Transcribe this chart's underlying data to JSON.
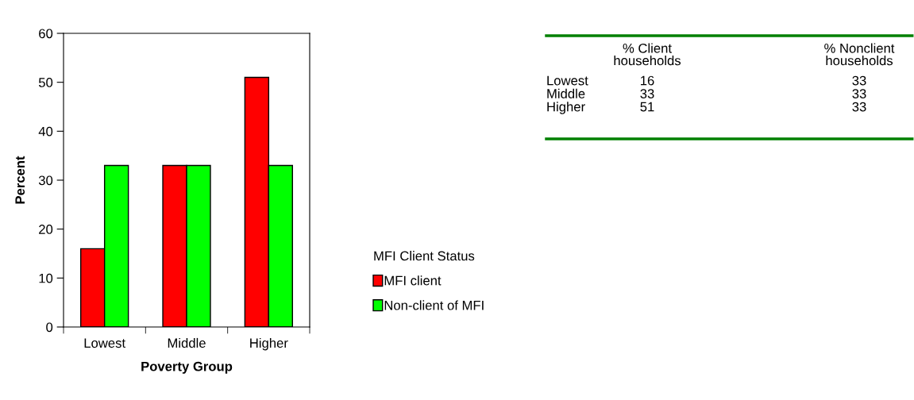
{
  "chart_data": [
    {
      "type": "bar",
      "xlabel": "Poverty Group",
      "ylabel": "Percent",
      "legend_title": "MFI Client Status",
      "categories": [
        "Lowest",
        "Middle",
        "Higher"
      ],
      "series": [
        {
          "name": "MFI client",
          "color": "#ff0000",
          "values": [
            16,
            33,
            51
          ]
        },
        {
          "name": "Non-client of MFI",
          "color": "#00ff00",
          "values": [
            33,
            33,
            33
          ]
        }
      ],
      "ylim": [
        0,
        60
      ],
      "yticks": [
        0,
        10,
        20,
        30,
        40,
        50,
        60
      ],
      "grid": false,
      "legend": "right"
    },
    {
      "type": "other",
      "data_labels": true,
      "categories": [
        "Lowest",
        "Middle",
        "Higher"
      ],
      "series": [
        {
          "name": "% Client\nhouseholds",
          "values": [
            16,
            33,
            51
          ]
        },
        {
          "name": "% Nonclient\nhouseholds",
          "values": [
            33,
            33,
            33
          ]
        }
      ]
    }
  ]
}
